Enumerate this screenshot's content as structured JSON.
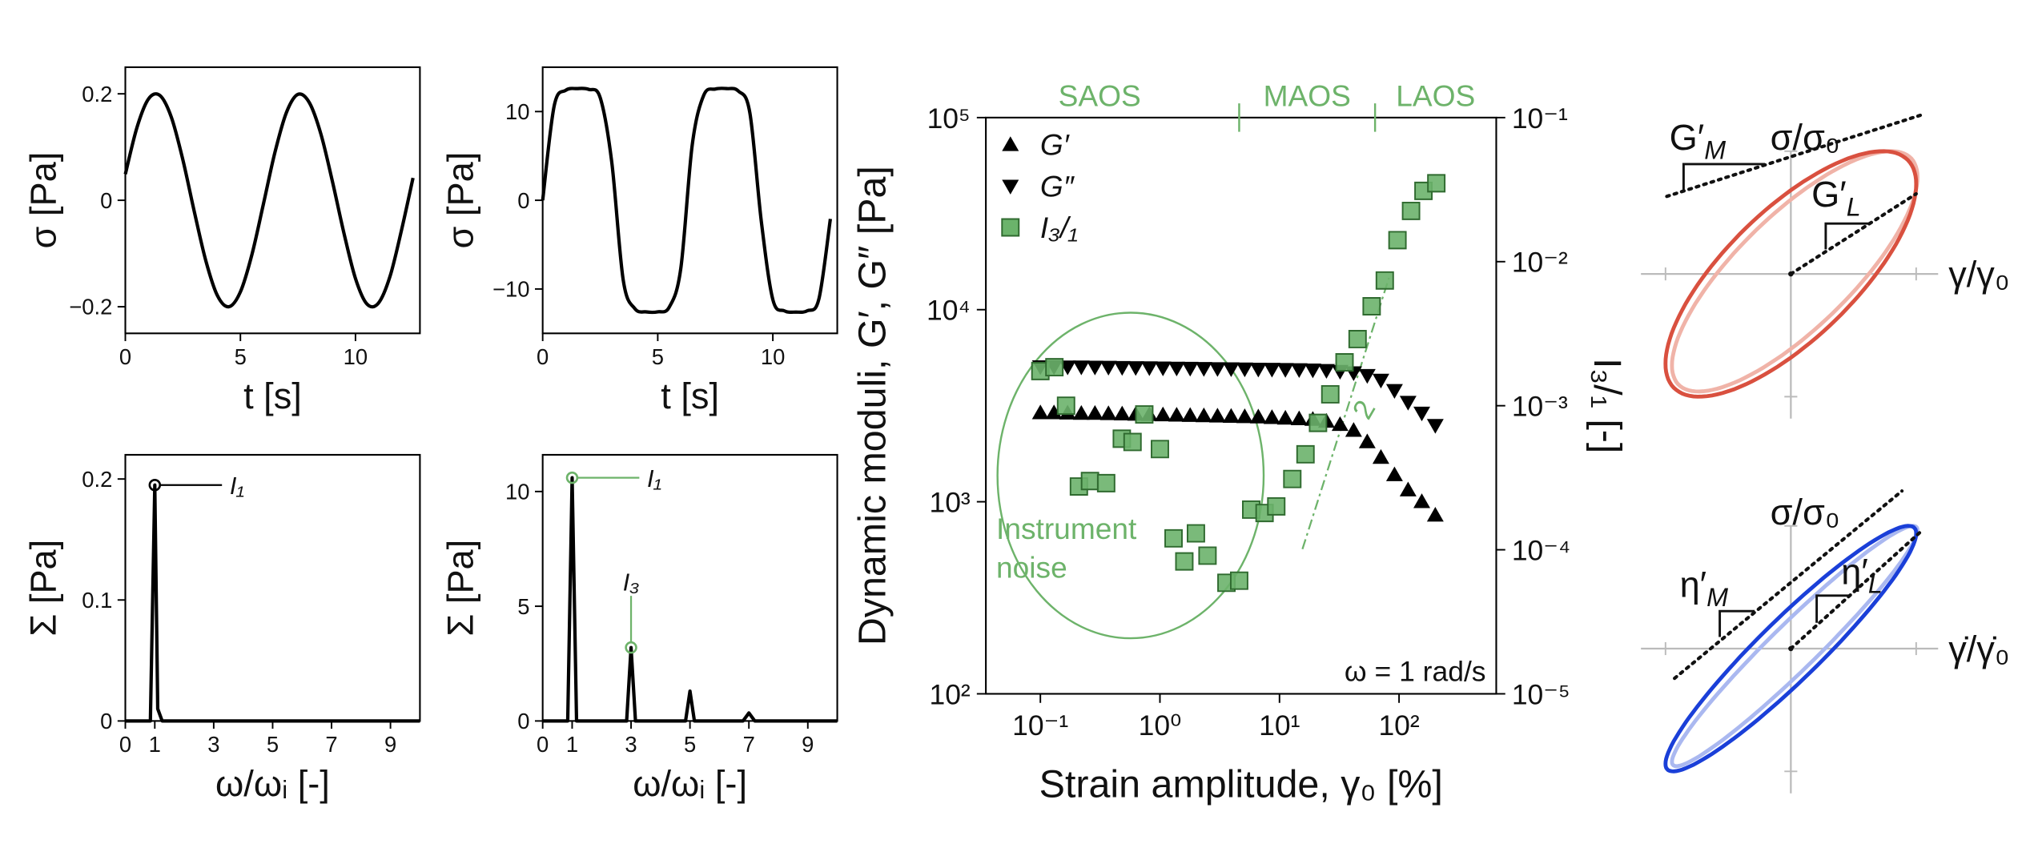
{
  "chart_data": [
    {
      "type": "line",
      "x_label": "t [s]",
      "y_label": "σ [Pa]",
      "color": "#000000",
      "x": [
        0,
        0.5,
        1,
        1.5,
        2,
        2.5,
        3,
        3.5,
        4,
        4.5,
        5,
        5.5,
        6,
        6.5,
        7,
        7.5,
        8,
        8.5,
        9,
        9.5,
        10,
        10.5,
        11,
        11.5,
        12,
        12.5
      ],
      "values": [
        0.049,
        0.136,
        0.19,
        0.197,
        0.156,
        0.076,
        -0.022,
        -0.114,
        -0.179,
        -0.2,
        -0.172,
        -0.102,
        -0.007,
        0.09,
        0.165,
        0.199,
        0.183,
        0.124,
        0.035,
        -0.062,
        -0.147,
        -0.195,
        -0.193,
        -0.143,
        -0.056,
        0.042
      ],
      "xlim": [
        0,
        12.8
      ],
      "xticks": [
        0,
        5,
        10
      ],
      "ylim": [
        -0.25,
        0.25
      ],
      "yticks": [
        {
          "value": -0.2,
          "label": "−0.2"
        },
        0,
        0.2
      ]
    },
    {
      "type": "line",
      "x_label": "t [s]",
      "y_label": "σ [Pa]",
      "color": "#000000",
      "x": [
        0,
        0.5,
        1,
        1.5,
        2,
        2.5,
        3,
        3.5,
        4,
        4.5,
        5,
        5.5,
        6,
        6.5,
        7,
        7.5,
        8,
        8.5,
        9,
        9.5,
        10,
        10.5,
        11,
        11.5,
        12,
        12.5
      ],
      "values": [
        0,
        10.64,
        12.39,
        12.59,
        12.5,
        11.56,
        4.33,
        -9.0,
        -12.2,
        -12.58,
        -12.57,
        -12.04,
        -7.7,
        6.28,
        11.85,
        12.54,
        12.59,
        12.31,
        9.88,
        -2.39,
        -11.19,
        -12.46,
        -12.6,
        -12.45,
        -11.14,
        -2.1
      ],
      "xlim": [
        0,
        12.8
      ],
      "xticks": [
        0,
        5,
        10
      ],
      "ylim": [
        -15,
        15
      ],
      "yticks": [
        {
          "value": -10,
          "label": "−10"
        },
        0,
        10
      ]
    },
    {
      "type": "spectrum",
      "x_label": "ω/ωᵢ [-]",
      "y_label": "Σ [Pa]",
      "color": "#000000",
      "x": [
        0,
        0.85,
        1,
        1.1,
        1.25,
        10
      ],
      "values": [
        0,
        0,
        0.195,
        0.01,
        0,
        0
      ],
      "annotations": [
        "I₁"
      ],
      "xlim": [
        0,
        10
      ],
      "xticks": [
        0,
        1,
        3,
        5,
        7,
        9
      ],
      "ylim": [
        0,
        0.22
      ],
      "yticks": [
        0,
        0.1,
        0.2
      ]
    },
    {
      "type": "spectrum",
      "x_label": "ω/ωᵢ [-]",
      "y_label": "Σ [Pa]",
      "color": "#000000",
      "x": [
        0,
        0.85,
        1,
        1.15,
        2.85,
        3,
        3.15,
        4.85,
        5,
        5.15,
        6.8,
        7,
        7.2,
        10
      ],
      "values": [
        0,
        0,
        10.6,
        0,
        0,
        3.2,
        0,
        0,
        1.3,
        0,
        0,
        0.35,
        0,
        0
      ],
      "annotations": [
        "I₁",
        "I₃"
      ],
      "xlim": [
        0,
        10
      ],
      "xticks": [
        0,
        1,
        3,
        5,
        7,
        9
      ],
      "ylim": [
        0,
        11.6
      ],
      "yticks": [
        0,
        5,
        10
      ]
    },
    {
      "type": "scatter",
      "x_label": "Strain amplitude, γ₀ [%]",
      "y_label": "Dynamic moduli, G′, G″ [Pa]",
      "y2_label": "I₃/₁ [-]",
      "log_x": true,
      "log_y": true,
      "xlim": [
        0.035,
        650
      ],
      "xticks": [
        {
          "value": 0.1,
          "label": "10⁻¹"
        },
        {
          "value": 1,
          "label": "10⁰"
        },
        {
          "value": 10,
          "label": "10¹"
        },
        {
          "value": 100,
          "label": "10²"
        }
      ],
      "ylim": [
        100,
        100000
      ],
      "yticks": [
        {
          "value": 100,
          "label": "10²"
        },
        {
          "value": 1000,
          "label": "10³"
        },
        {
          "value": 10000,
          "label": "10⁴"
        },
        {
          "value": 100000,
          "label": "10⁵"
        }
      ],
      "y2lim": [
        1e-05,
        0.1
      ],
      "y2ticks": [
        {
          "value": 1e-05,
          "label": "10⁻⁵"
        },
        {
          "value": 0.0001,
          "label": "10⁻⁴"
        },
        {
          "value": 0.001,
          "label": "10⁻³"
        },
        {
          "value": 0.01,
          "label": "10⁻²"
        },
        {
          "value": 0.1,
          "label": "10⁻¹"
        }
      ],
      "legend": "upper left",
      "regimes": [
        "SAOS",
        "MAOS",
        "LAOS"
      ],
      "regime_boundaries": [
        4.6,
        63
      ],
      "regime_color": "#6db36a",
      "noise_label": [
        "Instrument",
        "noise"
      ],
      "condition": "ω = 1 rad/s",
      "slope_label": "2",
      "series": [
        {
          "name": "G′",
          "color": "#000000",
          "marker": "triangle-up",
          "x": [
            0.1,
            0.13,
            0.169,
            0.22,
            0.286,
            0.371,
            0.483,
            0.627,
            0.816,
            1.06,
            1.38,
            1.79,
            2.33,
            3.03,
            3.94,
            5.12,
            6.65,
            8.65,
            11.2,
            14.6,
            19,
            24.7,
            32.1,
            41.7,
            54.2,
            70.5,
            91.6,
            119,
            155,
            201
          ],
          "values": [
            2900,
            2900,
            2890,
            2880,
            2880,
            2870,
            2860,
            2850,
            2840,
            2830,
            2820,
            2810,
            2800,
            2790,
            2780,
            2770,
            2760,
            2740,
            2720,
            2700,
            2680,
            2620,
            2520,
            2350,
            2050,
            1700,
            1380,
            1150,
            1000,
            850
          ]
        },
        {
          "name": "G″",
          "color": "#000000",
          "marker": "triangle-down",
          "x": [
            0.1,
            0.13,
            0.169,
            0.22,
            0.286,
            0.371,
            0.483,
            0.627,
            0.816,
            1.06,
            1.38,
            1.79,
            2.33,
            3.03,
            3.94,
            5.12,
            6.65,
            8.65,
            11.2,
            14.6,
            19,
            24.7,
            32.1,
            41.7,
            54.2,
            70.5,
            91.6,
            119,
            155,
            201
          ],
          "values": [
            5050,
            5050,
            5040,
            5040,
            5030,
            5020,
            5010,
            5000,
            4990,
            4980,
            4970,
            4960,
            4950,
            4940,
            4930,
            4920,
            4910,
            4900,
            4890,
            4880,
            4860,
            4830,
            4780,
            4700,
            4550,
            4300,
            3800,
            3300,
            2900,
            2500
          ]
        },
        {
          "name": "I₃/₁",
          "color": "#6bb36b",
          "marker": "square",
          "axis": "y2",
          "x": [
            0.1,
            0.131,
            0.164,
            0.21,
            0.26,
            0.355,
            0.48,
            0.59,
            0.74,
            1,
            1.3,
            1.6,
            2,
            2.5,
            3.6,
            4.6,
            5.8,
            7.5,
            9.4,
            12.8,
            16.5,
            21,
            26.6,
            35,
            45,
            59,
            76,
            97,
            126,
            160,
            205
          ],
          "values": [
            0.00174,
            0.00185,
            0.001,
            0.000275,
            0.0003,
            0.00029,
            0.00059,
            0.00056,
            0.00087,
            0.0005,
            0.00012,
            8.3e-05,
            0.00013,
            9.1e-05,
            5.9e-05,
            6.1e-05,
            0.00019,
            0.00018,
            0.0002,
            0.00031,
            0.00046,
            0.00076,
            0.0012,
            0.002,
            0.0029,
            0.0049,
            0.0074,
            0.0141,
            0.0225,
            0.031,
            0.035
          ]
        }
      ]
    }
  ],
  "diagrams": {
    "top": {
      "y_label": "σ/σ₀",
      "x_label": "γ/γ₀",
      "slopes": [
        {
          "base": "G′",
          "sub": "M"
        },
        {
          "base": "G′",
          "sub": "L"
        }
      ]
    },
    "bottom": {
      "y_label": "σ/σ₀",
      "x_label": "γ̇/γ̇₀",
      "slopes": [
        {
          "base": "η′",
          "sub": "M"
        },
        {
          "base": "η′",
          "sub": "L"
        }
      ]
    }
  }
}
